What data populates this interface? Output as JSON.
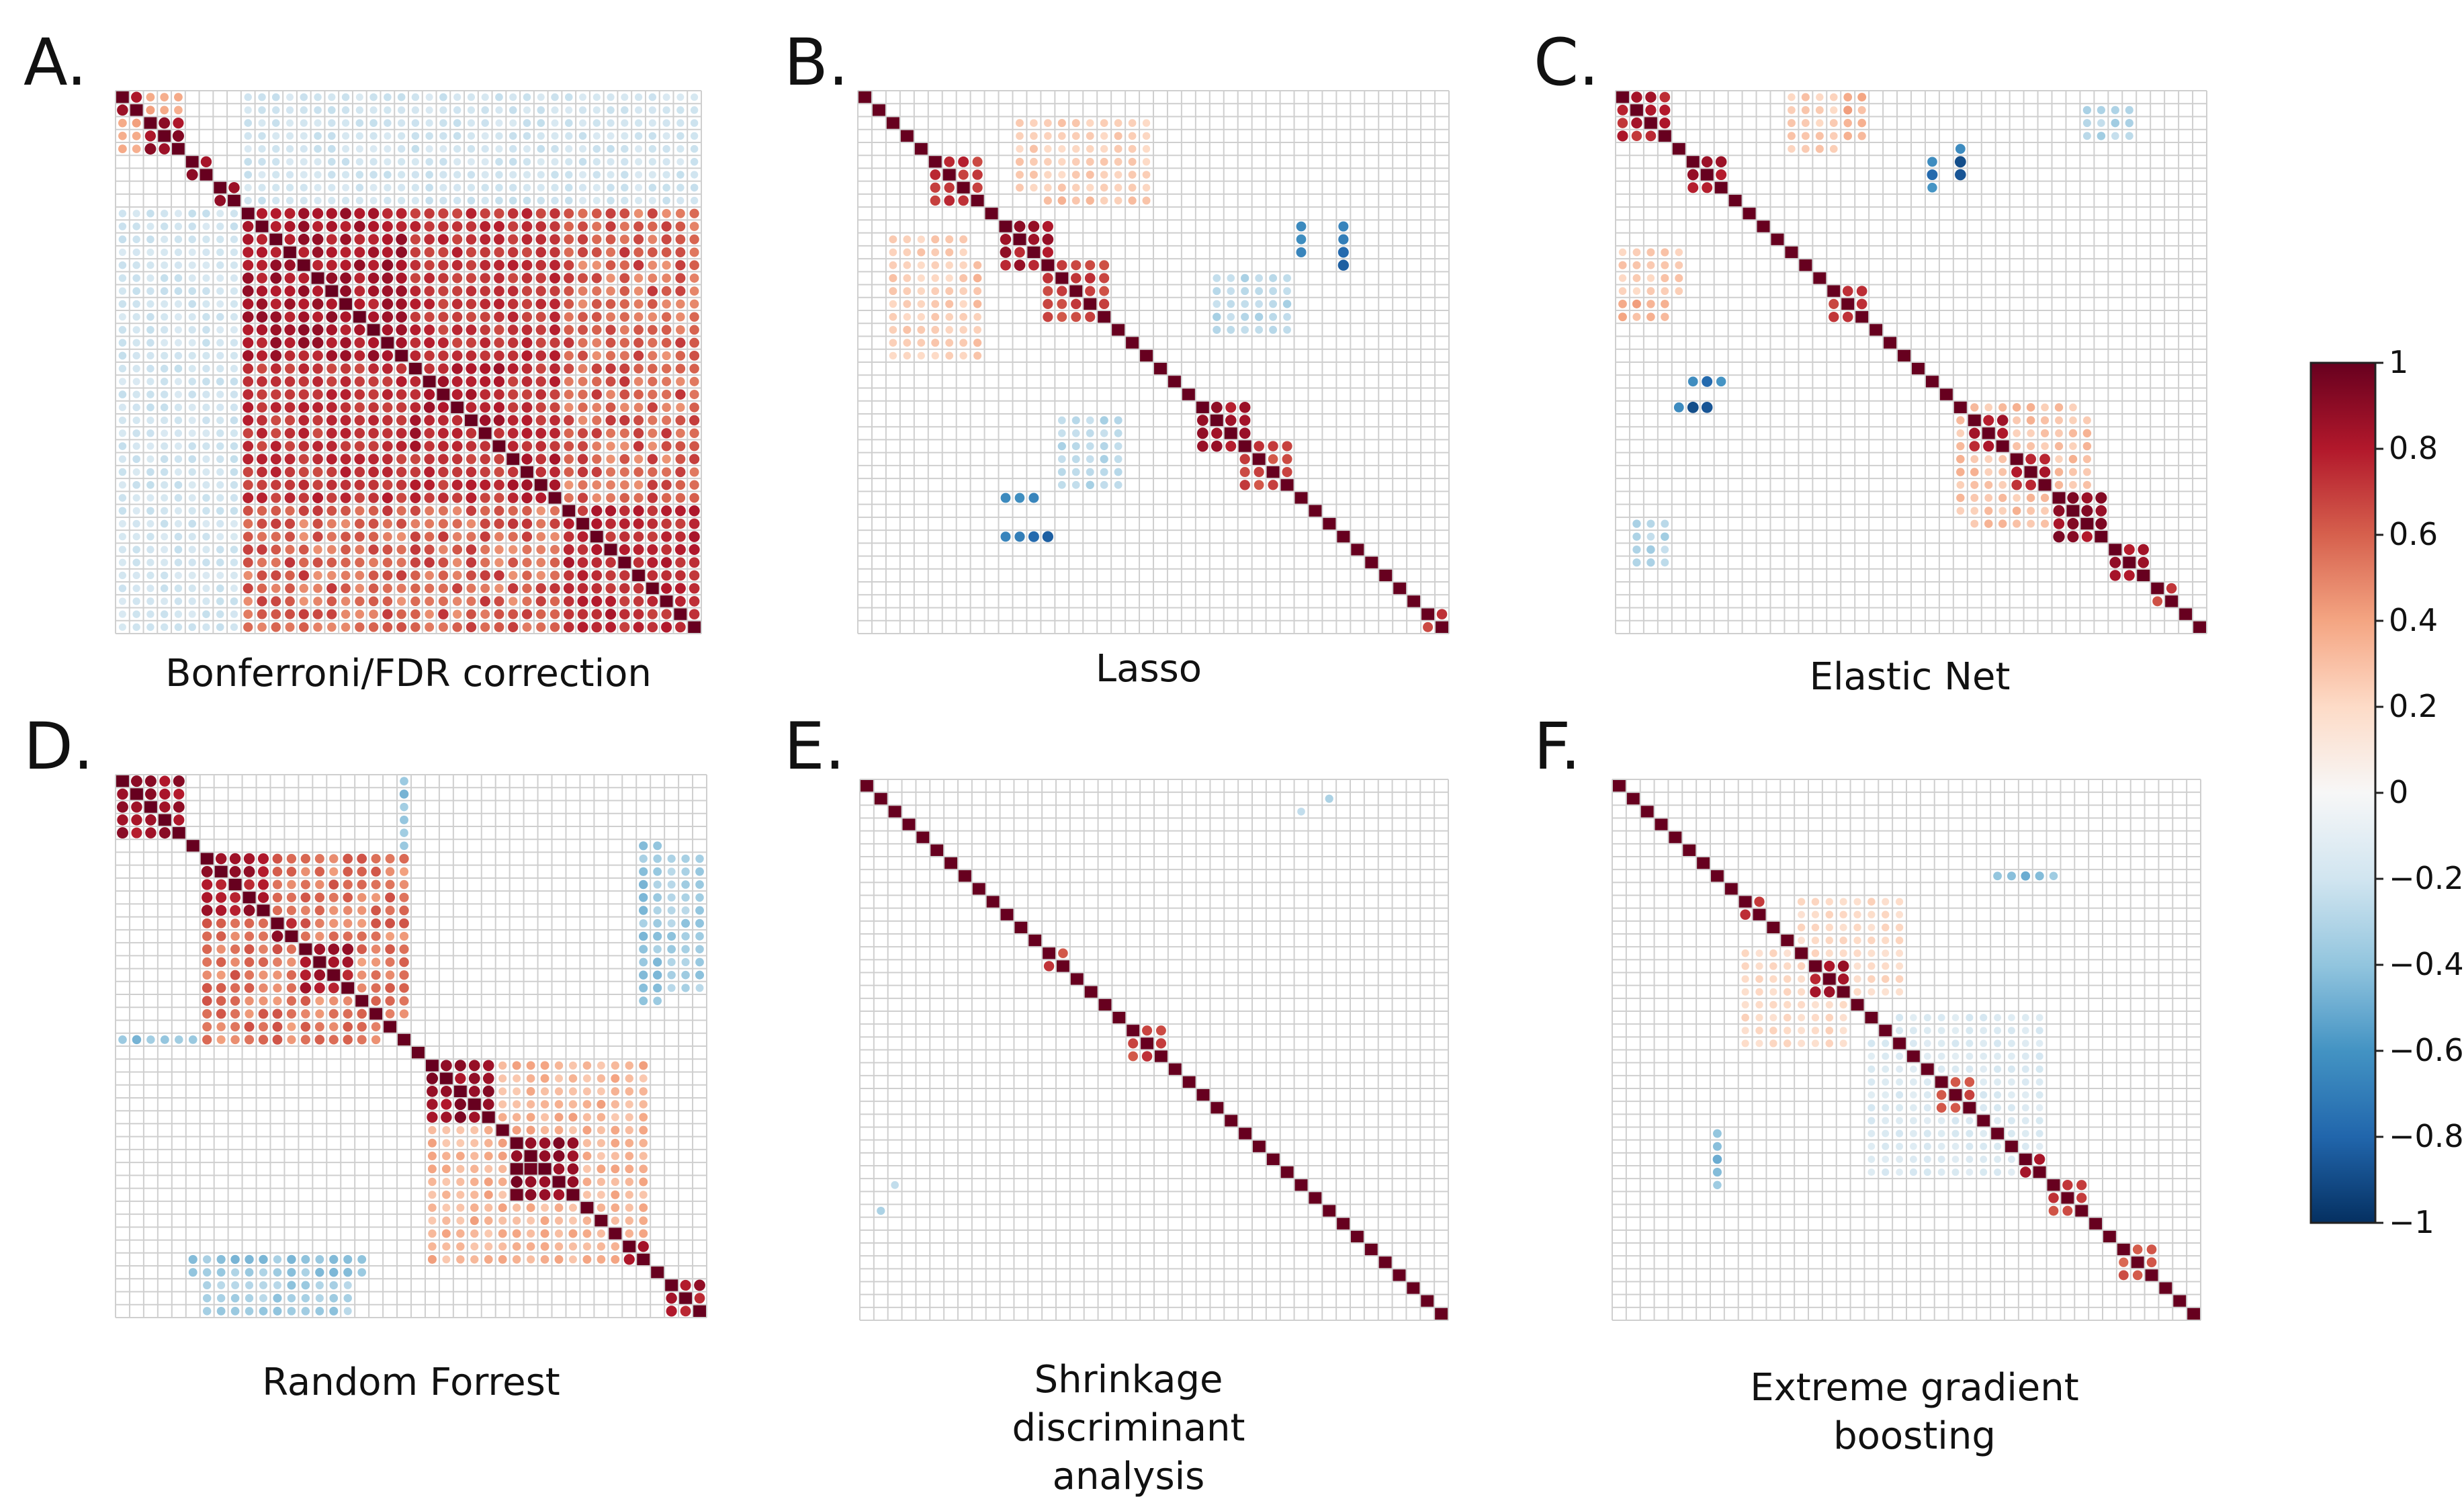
{
  "figure": {
    "panels": [
      {
        "letter": "A.",
        "caption": "Bonferroni/FDR correction"
      },
      {
        "letter": "B.",
        "caption": "Lasso"
      },
      {
        "letter": "C.",
        "caption": "Elastic Net"
      },
      {
        "letter": "D.",
        "caption": "Random Forrest"
      },
      {
        "letter": "E.",
        "caption": "Shrinkage discriminant analysis"
      },
      {
        "letter": "F.",
        "caption": "Extreme gradient boosting"
      }
    ],
    "colorbar": {
      "ticks": [
        "1",
        "0.8",
        "0.6",
        "0.4",
        "0.2",
        "0",
        "−0.2",
        "−0.4",
        "−0.6",
        "−0.8",
        "−1"
      ],
      "colors": {
        "max": "#67001f",
        "high": "#b2182b",
        "mid_high": "#d6604d",
        "low_pos": "#f4a582",
        "faint_pos": "#fddbc7",
        "zero": "#f7f7f7",
        "faint_neg": "#d1e5f0",
        "low_neg": "#92c5de",
        "mid_neg": "#4393c3",
        "high_neg": "#2166ac",
        "min": "#053061"
      }
    }
  },
  "chart_data": [
    {
      "type": "heatmap",
      "panel": "A.",
      "n": 42,
      "range": [
        -1,
        1
      ],
      "blocks": [
        {
          "range": [
            0,
            1
          ],
          "value": 0.9
        },
        {
          "range": [
            2,
            4
          ],
          "value": 0.92
        },
        {
          "range": [
            5,
            6
          ],
          "value": 0.88
        },
        {
          "range": [
            7,
            8
          ],
          "value": 0.85
        },
        {
          "range": [
            9,
            31
          ],
          "value": 0.75
        },
        {
          "range": [
            9,
            20
          ],
          "value": 0.85
        },
        {
          "range": [
            21,
            27
          ],
          "value": 0.82
        },
        {
          "range": [
            28,
            31
          ],
          "value": 0.8
        },
        {
          "range": [
            32,
            41
          ],
          "value": 0.78
        }
      ],
      "cross": [
        {
          "rows": [
            9,
            31
          ],
          "cols": [
            32,
            41
          ],
          "value": 0.6
        },
        {
          "rows": [
            0,
            8
          ],
          "cols": [
            9,
            41
          ],
          "value": -0.2
        },
        {
          "rows": [
            0,
            1
          ],
          "cols": [
            2,
            4
          ],
          "value": 0.35
        }
      ]
    },
    {
      "type": "heatmap",
      "panel": "B.",
      "n": 42,
      "range": [
        -1,
        1
      ],
      "blocks": [
        {
          "range": [
            5,
            8
          ],
          "value": 0.75
        },
        {
          "range": [
            10,
            13
          ],
          "value": 0.85
        },
        {
          "range": [
            13,
            17
          ],
          "value": 0.7
        },
        {
          "range": [
            24,
            27
          ],
          "value": 0.85
        },
        {
          "range": [
            27,
            30
          ],
          "value": 0.7
        },
        {
          "range": [
            40,
            41
          ],
          "value": 0.7
        }
      ],
      "cross": [
        {
          "rows": [
            5,
            8
          ],
          "cols": [
            13,
            20
          ],
          "value": 0.3
        },
        {
          "rows": [
            10,
            13
          ],
          "cols": [
            34,
            34
          ],
          "value": -0.75
        },
        {
          "rows": [
            31,
            31
          ],
          "cols": [
            10,
            12
          ],
          "value": -0.75
        },
        {
          "rows": [
            11,
            20
          ],
          "cols": [
            2,
            7
          ],
          "value": 0.25
        },
        {
          "rows": [
            25,
            30
          ],
          "cols": [
            14,
            18
          ],
          "value": -0.3
        }
      ]
    },
    {
      "type": "heatmap",
      "panel": "C.",
      "n": 42,
      "range": [
        -1,
        1
      ],
      "blocks": [
        {
          "range": [
            0,
            3
          ],
          "value": 0.8
        },
        {
          "range": [
            5,
            7
          ],
          "value": 0.88
        },
        {
          "range": [
            15,
            17
          ],
          "value": 0.7
        },
        {
          "range": [
            25,
            27
          ],
          "value": 0.82
        },
        {
          "range": [
            28,
            30
          ],
          "value": 0.82
        },
        {
          "range": [
            31,
            34
          ],
          "value": 0.9
        },
        {
          "range": [
            35,
            37
          ],
          "value": 0.85
        },
        {
          "range": [
            38,
            39
          ],
          "value": 0.7
        }
      ],
      "cross": [
        {
          "rows": [
            0,
            3
          ],
          "cols": [
            14,
            17
          ],
          "value": 0.35
        },
        {
          "rows": [
            4,
            6
          ],
          "cols": [
            24,
            24
          ],
          "value": -0.75
        },
        {
          "rows": [
            22,
            22
          ],
          "cols": [
            5,
            7
          ],
          "value": -0.75
        },
        {
          "rows": [
            12,
            15
          ],
          "cols": [
            0,
            4
          ],
          "value": 0.25
        },
        {
          "rows": [
            24,
            33
          ],
          "cols": [
            25,
            32
          ],
          "value": 0.3
        },
        {
          "rows": [
            33,
            36
          ],
          "cols": [
            1,
            3
          ],
          "value": -0.3
        }
      ]
    },
    {
      "type": "heatmap",
      "panel": "D.",
      "n": 42,
      "range": [
        -1,
        1
      ],
      "blocks": [
        {
          "range": [
            0,
            4
          ],
          "value": 0.88
        },
        {
          "range": [
            6,
            10
          ],
          "value": 0.85
        },
        {
          "range": [
            11,
            12
          ],
          "value": 0.85
        },
        {
          "range": [
            13,
            16
          ],
          "value": 0.85
        },
        {
          "range": [
            22,
            26
          ],
          "value": 0.9
        },
        {
          "range": [
            28,
            32
          ],
          "value": 0.95
        },
        {
          "range": [
            36,
            37
          ],
          "value": 0.8
        },
        {
          "range": [
            39,
            41
          ],
          "value": 0.85
        }
      ],
      "cross": [
        {
          "rows": [
            6,
            18
          ],
          "cols": [
            6,
            20
          ],
          "value": 0.55
        },
        {
          "rows": [
            22,
            37
          ],
          "cols": [
            22,
            37
          ],
          "value": 0.35
        },
        {
          "rows": [
            0,
            3
          ],
          "cols": [
            20,
            20
          ],
          "value": -0.4
        },
        {
          "rows": [
            6,
            16
          ],
          "cols": [
            38,
            41
          ],
          "value": -0.35
        },
        {
          "rows": [
            20,
            20
          ],
          "cols": [
            0,
            5
          ],
          "value": -0.4
        },
        {
          "rows": [
            37,
            38
          ],
          "cols": [
            5,
            17
          ],
          "value": -0.4
        }
      ]
    },
    {
      "type": "heatmap",
      "panel": "E.",
      "n": 42,
      "range": [
        -1,
        1
      ],
      "blocks": [
        {
          "range": [
            13,
            14
          ],
          "value": 0.7
        },
        {
          "range": [
            19,
            21
          ],
          "value": 0.7
        }
      ],
      "cross": [
        {
          "rows": [
            1,
            1
          ],
          "cols": [
            33,
            33
          ],
          "value": -0.3
        },
        {
          "rows": [
            31,
            31
          ],
          "cols": [
            2,
            2
          ],
          "value": -0.3
        }
      ]
    },
    {
      "type": "heatmap",
      "panel": "F.",
      "n": 42,
      "range": [
        -1,
        1
      ],
      "blocks": [
        {
          "range": [
            9,
            10
          ],
          "value": 0.8
        },
        {
          "range": [
            14,
            16
          ],
          "value": 0.85
        },
        {
          "range": [
            23,
            25
          ],
          "value": 0.65
        },
        {
          "range": [
            29,
            30
          ],
          "value": 0.85
        },
        {
          "range": [
            31,
            33
          ],
          "value": 0.7
        },
        {
          "range": [
            36,
            38
          ],
          "value": 0.65
        }
      ],
      "cross": [
        {
          "rows": [
            7,
            7
          ],
          "cols": [
            29,
            31
          ],
          "value": -0.4
        },
        {
          "rows": [
            27,
            29
          ],
          "cols": [
            7,
            7
          ],
          "value": -0.45
        },
        {
          "rows": [
            20,
            30
          ],
          "cols": [
            18,
            30
          ],
          "value": -0.15
        },
        {
          "rows": [
            13,
            20
          ],
          "cols": [
            9,
            16
          ],
          "value": 0.2
        }
      ]
    }
  ]
}
